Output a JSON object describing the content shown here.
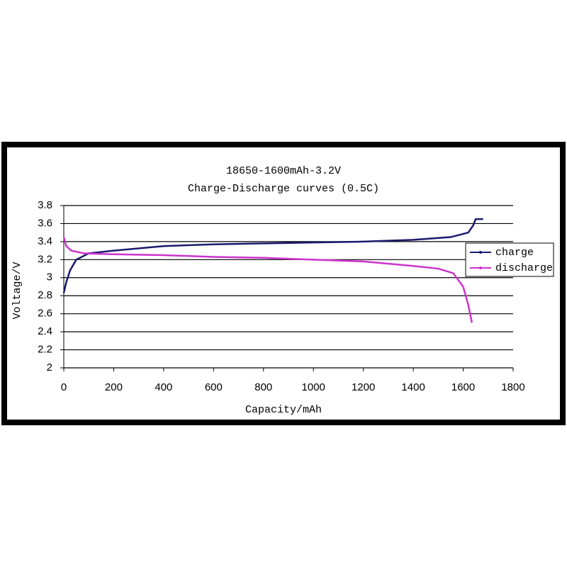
{
  "chart_data": {
    "type": "line",
    "title": "18650-1600mAh-3.2V",
    "subtitle": "Charge-Discharge curves (0.5C)",
    "x_label": "Capacity/mAh",
    "y_label": "Voltage/V",
    "xlim": [
      0,
      1800
    ],
    "xticks": [
      0,
      200,
      400,
      600,
      800,
      1000,
      1200,
      1400,
      1600,
      1800
    ],
    "ylim": [
      2,
      3.8
    ],
    "yticks": [
      2,
      2.2,
      2.4,
      2.6,
      2.8,
      3,
      3.2,
      3.4,
      3.6,
      3.8
    ],
    "grid": true,
    "legend": "right",
    "series": [
      {
        "name": "charge",
        "color": "#1a1a6e",
        "x": [
          0,
          10,
          25,
          50,
          100,
          200,
          400,
          600,
          800,
          1000,
          1200,
          1400,
          1550,
          1620,
          1640,
          1650,
          1680
        ],
        "values": [
          2.83,
          2.95,
          3.08,
          3.2,
          3.27,
          3.3,
          3.35,
          3.37,
          3.38,
          3.39,
          3.4,
          3.42,
          3.45,
          3.5,
          3.58,
          3.65,
          3.65
        ]
      },
      {
        "name": "discharge",
        "color": "#cc33cc",
        "x": [
          0,
          10,
          30,
          80,
          200,
          400,
          600,
          800,
          1000,
          1200,
          1400,
          1500,
          1560,
          1600,
          1620,
          1635
        ],
        "values": [
          3.45,
          3.35,
          3.3,
          3.27,
          3.26,
          3.25,
          3.23,
          3.22,
          3.2,
          3.18,
          3.13,
          3.1,
          3.05,
          2.9,
          2.7,
          2.5
        ]
      }
    ]
  }
}
